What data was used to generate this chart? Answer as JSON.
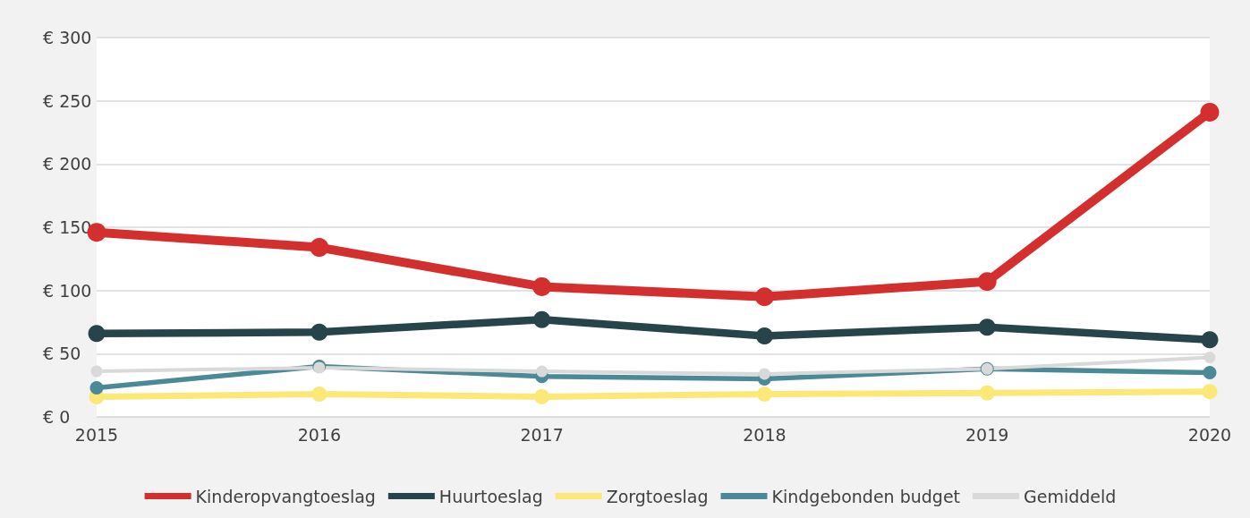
{
  "chart_data": {
    "type": "line",
    "categories": [
      "2015",
      "2016",
      "2017",
      "2018",
      "2019",
      "2020"
    ],
    "series": [
      {
        "name": "Kinderopvangtoeslag",
        "color": "#d32f2f",
        "values": [
          146,
          134,
          103,
          95,
          107,
          241
        ]
      },
      {
        "name": "Huurtoeslag",
        "color": "#27444a",
        "values": [
          66,
          67,
          77,
          64,
          71,
          61
        ]
      },
      {
        "name": "Zorgtoeslag",
        "color": "#fbe877",
        "values": [
          16,
          18,
          16,
          18,
          19,
          20
        ]
      },
      {
        "name": "Kindgebonden budget",
        "color": "#4a8a96",
        "values": [
          23,
          40,
          32,
          30,
          38,
          35
        ]
      },
      {
        "name": "Gemiddeld",
        "color": "#d9d9d9",
        "values": [
          36,
          39,
          36,
          34,
          38,
          47
        ]
      }
    ],
    "ylim": [
      0,
      300
    ],
    "yticks": [
      {
        "value": 0,
        "label": "€ 0"
      },
      {
        "value": 50,
        "label": "€ 50"
      },
      {
        "value": 100,
        "label": "€ 100"
      },
      {
        "value": 150,
        "label": "€ 150"
      },
      {
        "value": 200,
        "label": "€ 200"
      },
      {
        "value": 250,
        "label": "€ 250"
      },
      {
        "value": 300,
        "label": "€ 300"
      }
    ],
    "grid": "y",
    "legend": "bottom",
    "marker": "circle",
    "line_style": "solid"
  }
}
